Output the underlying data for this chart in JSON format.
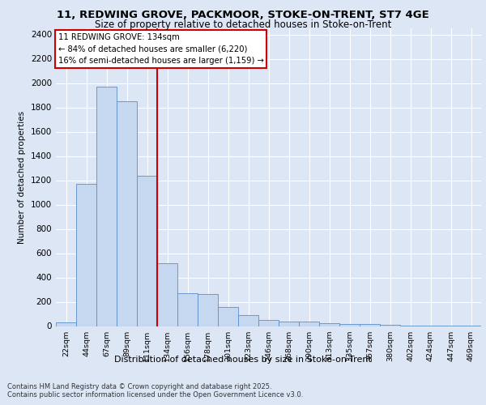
{
  "title_line1": "11, REDWING GROVE, PACKMOOR, STOKE-ON-TRENT, ST7 4GE",
  "title_line2": "Size of property relative to detached houses in Stoke-on-Trent",
  "xlabel": "Distribution of detached houses by size in Stoke-on-Trent",
  "ylabel": "Number of detached properties",
  "categories": [
    "22sqm",
    "44sqm",
    "67sqm",
    "89sqm",
    "111sqm",
    "134sqm",
    "156sqm",
    "178sqm",
    "201sqm",
    "223sqm",
    "246sqm",
    "268sqm",
    "290sqm",
    "313sqm",
    "335sqm",
    "357sqm",
    "380sqm",
    "402sqm",
    "424sqm",
    "447sqm",
    "469sqm"
  ],
  "values": [
    30,
    1170,
    1970,
    1850,
    1240,
    520,
    270,
    265,
    155,
    90,
    50,
    40,
    40,
    25,
    15,
    15,
    10,
    5,
    5,
    5,
    5
  ],
  "bar_color": "#c5d8f0",
  "bar_edge_color": "#5b8fc9",
  "vline_color": "#cc0000",
  "vline_index": 5,
  "annotation_title": "11 REDWING GROVE: 134sqm",
  "annotation_line1": "← 84% of detached houses are smaller (6,220)",
  "annotation_line2": "16% of semi-detached houses are larger (1,159) →",
  "annotation_box_color": "#cc0000",
  "ylim": [
    0,
    2450
  ],
  "yticks": [
    0,
    200,
    400,
    600,
    800,
    1000,
    1200,
    1400,
    1600,
    1800,
    2000,
    2200,
    2400
  ],
  "bg_color": "#dce6f5",
  "plot_bg_color": "#dce6f5",
  "grid_color": "#ffffff",
  "footer_line1": "Contains HM Land Registry data © Crown copyright and database right 2025.",
  "footer_line2": "Contains public sector information licensed under the Open Government Licence v3.0."
}
